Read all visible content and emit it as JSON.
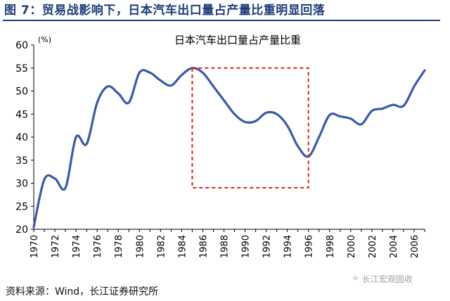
{
  "header": {
    "title": "图 7：贸易战影响下，日本汽车出口量占产量比重明显回落"
  },
  "footer": {
    "source": "资料来源：Wind，长江证券研究所",
    "watermark": "长江宏观固收",
    "watermark_icon": "wechat-icon"
  },
  "colors": {
    "title": "#1f3d7a",
    "line": "#3a5aa8",
    "highlight_box": "#e02020"
  },
  "chart_data": {
    "type": "line",
    "title": "日本汽车出口量占产量比重",
    "unit_label": "(%)",
    "xlabel": "",
    "ylabel": "",
    "ylim": [
      20,
      60
    ],
    "yticks": [
      20,
      25,
      30,
      35,
      40,
      45,
      50,
      55,
      60
    ],
    "xlim": [
      1970,
      2007
    ],
    "xticks": [
      "1970",
      "1972",
      "1974",
      "1976",
      "1978",
      "1980",
      "1982",
      "1984",
      "1986",
      "1988",
      "1990",
      "1992",
      "1994",
      "1996",
      "1998",
      "2000",
      "2002",
      "2004",
      "2006"
    ],
    "grid": false,
    "series": [
      {
        "x": [
          1970,
          1971,
          1972,
          1973,
          1974,
          1975,
          1976,
          1977,
          1978,
          1979,
          1980,
          1981,
          1982,
          1983,
          1984,
          1985,
          1986,
          1987,
          1988,
          1989,
          1990,
          1991,
          1992,
          1993,
          1994,
          1995,
          1996,
          1997,
          1998,
          1999,
          2000,
          2001,
          2002,
          2003,
          2004,
          2005,
          2006,
          2007
        ],
        "values": [
          20.5,
          30.8,
          31.0,
          29.0,
          40.0,
          38.5,
          47.5,
          51.0,
          49.5,
          47.5,
          54.0,
          54.0,
          52.3,
          51.2,
          53.5,
          55.0,
          54.0,
          51.0,
          48.0,
          45.0,
          43.3,
          43.5,
          45.3,
          45.0,
          42.5,
          38.0,
          35.8,
          40.0,
          44.8,
          44.5,
          44.0,
          42.8,
          45.7,
          46.2,
          47.0,
          46.8,
          51.0,
          54.5
        ]
      }
    ],
    "highlight": {
      "x_range": [
        1985,
        1996
      ],
      "y_range": [
        29,
        55
      ],
      "style": "dashed"
    }
  }
}
